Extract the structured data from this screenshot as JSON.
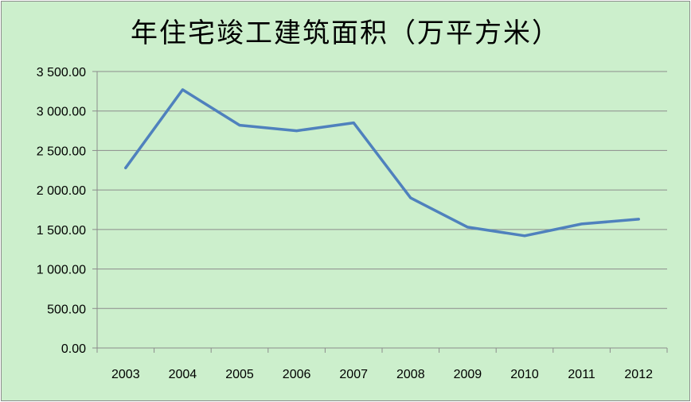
{
  "chart_data": {
    "type": "line",
    "title": "年住宅竣工建筑面积（万平方米）",
    "categories": [
      "2003",
      "2004",
      "2005",
      "2006",
      "2007",
      "2008",
      "2009",
      "2010",
      "2011",
      "2012"
    ],
    "y_ticks": [
      "0.00",
      "500.00",
      "1 000.00",
      "1 500.00",
      "2 000.00",
      "2 500.00",
      "3 000.00",
      "3 500.00"
    ],
    "ylim": [
      0,
      3500
    ],
    "grid": "horizontal",
    "series": [
      {
        "values": [
          2280,
          3270,
          2820,
          2750,
          2850,
          1900,
          1530,
          1420,
          1570,
          1630
        ]
      }
    ],
    "colors": {
      "line": "#4f81bd",
      "background": "#ccefcc",
      "grid": "#8c8c8c"
    }
  }
}
